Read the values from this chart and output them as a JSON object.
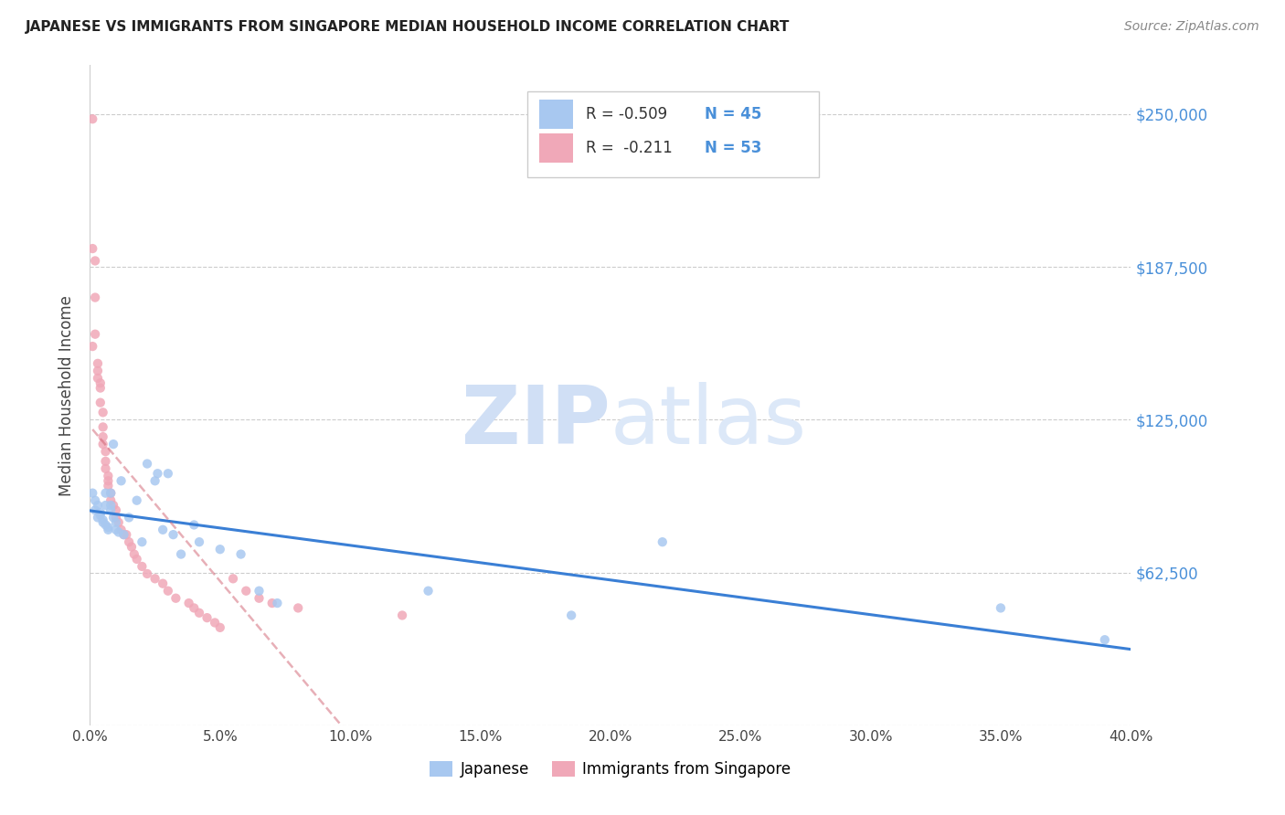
{
  "title": "JAPANESE VS IMMIGRANTS FROM SINGAPORE MEDIAN HOUSEHOLD INCOME CORRELATION CHART",
  "source": "Source: ZipAtlas.com",
  "ylabel": "Median Household Income",
  "y_ticks": [
    0,
    62500,
    125000,
    187500,
    250000
  ],
  "x_range": [
    0,
    0.4
  ],
  "y_range": [
    0,
    270000
  ],
  "color_japanese": "#a8c8f0",
  "color_singapore": "#f0a8b8",
  "color_japanese_line": "#3a7fd5",
  "color_singapore_line": "#d06070",
  "color_right_labels": "#4a90d9",
  "watermark_color": "#d0dff5",
  "japanese_x": [
    0.001,
    0.002,
    0.002,
    0.003,
    0.003,
    0.004,
    0.004,
    0.005,
    0.005,
    0.006,
    0.006,
    0.006,
    0.007,
    0.007,
    0.008,
    0.008,
    0.008,
    0.009,
    0.009,
    0.01,
    0.01,
    0.011,
    0.012,
    0.013,
    0.015,
    0.018,
    0.02,
    0.022,
    0.025,
    0.026,
    0.028,
    0.03,
    0.032,
    0.035,
    0.04,
    0.042,
    0.05,
    0.058,
    0.065,
    0.072,
    0.13,
    0.185,
    0.22,
    0.35,
    0.39
  ],
  "japanese_y": [
    95000,
    92000,
    88000,
    90000,
    85000,
    87000,
    86000,
    84000,
    83000,
    95000,
    90000,
    82000,
    81000,
    80000,
    95000,
    90000,
    88000,
    115000,
    85000,
    83000,
    80000,
    79000,
    100000,
    78000,
    85000,
    92000,
    75000,
    107000,
    100000,
    103000,
    80000,
    103000,
    78000,
    70000,
    82000,
    75000,
    72000,
    70000,
    55000,
    50000,
    55000,
    45000,
    75000,
    48000,
    35000
  ],
  "singapore_x": [
    0.001,
    0.001,
    0.001,
    0.002,
    0.002,
    0.002,
    0.003,
    0.003,
    0.003,
    0.004,
    0.004,
    0.004,
    0.005,
    0.005,
    0.005,
    0.005,
    0.006,
    0.006,
    0.006,
    0.007,
    0.007,
    0.007,
    0.008,
    0.008,
    0.009,
    0.01,
    0.01,
    0.011,
    0.012,
    0.013,
    0.014,
    0.015,
    0.016,
    0.017,
    0.018,
    0.02,
    0.022,
    0.025,
    0.028,
    0.03,
    0.033,
    0.038,
    0.04,
    0.042,
    0.045,
    0.048,
    0.05,
    0.055,
    0.06,
    0.065,
    0.07,
    0.08,
    0.12
  ],
  "singapore_y": [
    248000,
    195000,
    155000,
    190000,
    175000,
    160000,
    148000,
    145000,
    142000,
    140000,
    138000,
    132000,
    128000,
    122000,
    118000,
    115000,
    112000,
    108000,
    105000,
    102000,
    100000,
    98000,
    95000,
    92000,
    90000,
    88000,
    85000,
    83000,
    80000,
    78000,
    78000,
    75000,
    73000,
    70000,
    68000,
    65000,
    62000,
    60000,
    58000,
    55000,
    52000,
    50000,
    48000,
    46000,
    44000,
    42000,
    40000,
    60000,
    55000,
    52000,
    50000,
    48000,
    45000
  ]
}
